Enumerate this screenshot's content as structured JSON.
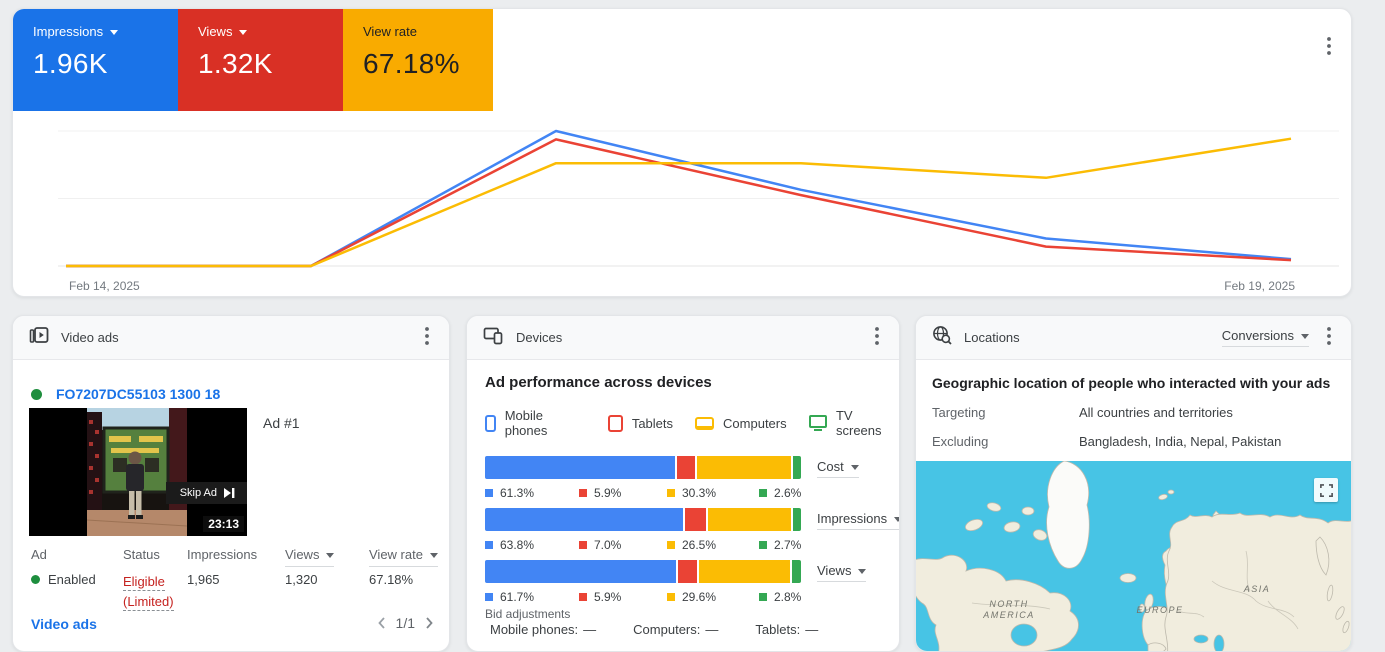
{
  "page": {
    "bg": "#ebedef"
  },
  "overview_card": {
    "scorecards": [
      {
        "label": "Impressions",
        "value": "1.96K",
        "bg": "#1A73E8",
        "text_color": "#FFFFFF",
        "caret": true
      },
      {
        "label": "Views",
        "value": "1.32K",
        "bg": "#D93025",
        "text_color": "#FFFFFF",
        "caret": true
      },
      {
        "label": "View rate",
        "value": "67.18%",
        "bg": "#F9AB00",
        "text_color": "#202124",
        "caret": false
      }
    ],
    "x_axis_start": "Feb 14, 2025",
    "x_axis_end": "Feb 19, 2025",
    "icons": [
      "kebab-menu-icon"
    ]
  },
  "chart_data": [
    {
      "type": "line",
      "x": [
        "Feb 14, 2025",
        "Feb 15, 2025",
        "Feb 16, 2025",
        "Feb 17, 2025",
        "Feb 18, 2025",
        "Feb 19, 2025"
      ],
      "series": [
        {
          "name": "Impressions",
          "color": "#4285F4",
          "axis_max": 1080,
          "values": [
            0,
            0,
            1080,
            610,
            220,
            55
          ]
        },
        {
          "name": "Views",
          "color": "#EA4335",
          "axis_max": 800,
          "values": [
            0,
            0,
            750,
            420,
            115,
            35
          ]
        },
        {
          "name": "View rate (%)",
          "color": "#FBBC04",
          "axis_max": 88,
          "values": [
            0,
            0,
            67,
            67,
            57.5,
            83
          ]
        }
      ],
      "grid": "horizontal",
      "legend_position": "none",
      "title": "",
      "xlabel": "",
      "ylabel": ""
    },
    {
      "type": "bar",
      "subtype": "horizontal-stacked-percent",
      "categories": [
        "Cost",
        "Impressions",
        "Views"
      ],
      "series": [
        {
          "name": "Mobile phones",
          "color": "#4285F4",
          "values": [
            61.3,
            63.8,
            61.7
          ]
        },
        {
          "name": "Tablets",
          "color": "#EA4335",
          "values": [
            5.9,
            7.0,
            5.9
          ]
        },
        {
          "name": "Computers",
          "color": "#FBBC04",
          "values": [
            30.3,
            26.5,
            29.6
          ]
        },
        {
          "name": "TV screens",
          "color": "#34A853",
          "values": [
            2.6,
            2.7,
            2.8
          ]
        }
      ],
      "unit": "%",
      "title": "Ad performance across devices"
    }
  ],
  "video_ads_card": {
    "title": "Video ads",
    "icons": [
      "video-ads-icon",
      "kebab-menu-icon"
    ],
    "status_dot_color": "#1E8E3E",
    "ad_group_link": "FO7207DC55103 1300 18",
    "ad_label": "Ad #1",
    "thumbnail": {
      "skip_button": "Skip Ad",
      "duration": "23:13"
    },
    "table": {
      "columns": [
        {
          "label": "Ad",
          "caret": false
        },
        {
          "label": "Status",
          "caret": false
        },
        {
          "label": "Impressions",
          "caret": false
        },
        {
          "label": "Views",
          "caret": true
        },
        {
          "label": "View rate",
          "caret": true
        }
      ],
      "row": {
        "ad_state": "Enabled",
        "status_line1": "Eligible",
        "status_line2": "(Limited)",
        "impressions": "1,965",
        "views": "1,320",
        "view_rate": "67.18%"
      }
    },
    "footer_link": "Video ads",
    "pagination": "1/1"
  },
  "devices_card": {
    "title": "Devices",
    "icons": [
      "devices-icon",
      "kebab-menu-icon"
    ],
    "subtitle": "Ad performance across devices",
    "legend": [
      {
        "label": "Mobile phones",
        "color": "#4285F4"
      },
      {
        "label": "Tablets",
        "color": "#EA4335"
      },
      {
        "label": "Computers",
        "color": "#FBBC04"
      },
      {
        "label": "TV screens",
        "color": "#34A853"
      }
    ],
    "bid_adjustments_label": "Bid adjustments",
    "bid_adjustments": [
      {
        "label": "Mobile phones:",
        "value": "—"
      },
      {
        "label": "Computers:",
        "value": "—"
      },
      {
        "label": "Tablets:",
        "value": "—"
      }
    ]
  },
  "locations_card": {
    "title": "Locations",
    "icons": [
      "locations-globe-icon",
      "kebab-menu-icon",
      "fullscreen-icon"
    ],
    "metric_dropdown": "Conversions",
    "subtitle": "Geographic location of people who interacted with your ads",
    "rows": [
      {
        "label": "Targeting",
        "value": "All countries and territories"
      },
      {
        "label": "Excluding",
        "value": "Bangladesh, India, Nepal, Pakistan"
      }
    ],
    "map": {
      "labels": [
        "NORTH AMERICA",
        "EUROPE",
        "ASIA"
      ],
      "water_color": "#47C4E5",
      "land_color": "#F1EDDE",
      "greenland_color": "#FBFBF9"
    }
  }
}
